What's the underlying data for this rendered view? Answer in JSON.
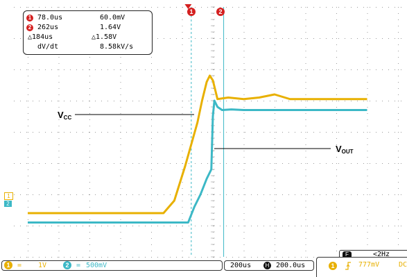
{
  "colors": {
    "ch1": "#e8b000",
    "ch2": "#3cb8c6",
    "cursor": "#d42020",
    "grid": "#9a9a9a",
    "text": "#000000"
  },
  "cursors": {
    "c1_badge": "1",
    "c2_badge": "2"
  },
  "readout": {
    "cursor1": {
      "badge": "1",
      "time": "78.0us",
      "volt": "60.0mV"
    },
    "cursor2": {
      "badge": "2",
      "time": "262us",
      "volt": "1.64V"
    },
    "delta": {
      "time_symbol": "△",
      "time": "184us",
      "volt_symbol": "△",
      "volt": "1.58V"
    },
    "slope": {
      "label": "dV/dt",
      "value": "8.58kV/s"
    }
  },
  "channels": {
    "ch1": {
      "marker": "1",
      "coupling_icon": "=",
      "scale": "1V"
    },
    "ch2": {
      "marker": "2",
      "coupling_icon": "=",
      "scale": "500mV"
    }
  },
  "labels": {
    "vcc": {
      "main": "V",
      "sub": "CC"
    },
    "vout": {
      "main": "V",
      "sub": "OUT"
    }
  },
  "timebase": {
    "scale": "200us",
    "icon": "H",
    "position": "200.0us"
  },
  "trigger": {
    "channel": "1",
    "edge_icon": "rising-edge",
    "level": "777mV",
    "coupling": "DC",
    "mode_label": "F",
    "freq": "<2Hz"
  },
  "chart_data": {
    "type": "line",
    "title": "",
    "xlabel": "",
    "ylabel": "",
    "grid": true,
    "series": [
      {
        "name": "VCC",
        "color": "#e8b000",
        "x_div": [
          0.0,
          4.4,
          4.75,
          5.1,
          5.5,
          5.65,
          5.8,
          5.9,
          6.0,
          6.15,
          6.5,
          7.0,
          7.5,
          8.0,
          8.5,
          9.0,
          10.0,
          11.0
        ],
        "y_div": [
          -2.6,
          -2.6,
          -2.2,
          -1.1,
          0.3,
          1.0,
          1.6,
          1.8,
          1.65,
          1.05,
          1.1,
          1.05,
          1.1,
          1.2,
          1.05,
          1.05,
          1.05,
          1.05
        ]
      },
      {
        "name": "VOUT",
        "color": "#3cb8c6",
        "x_div": [
          0.0,
          5.2,
          5.4,
          5.6,
          5.8,
          5.95,
          6.0,
          6.05,
          6.15,
          6.3,
          6.6,
          7.0,
          8.0,
          9.0,
          10.0,
          11.0
        ],
        "y_div": [
          -2.9,
          -2.9,
          -2.4,
          -2.0,
          -1.5,
          -1.2,
          0.5,
          1.0,
          0.8,
          0.7,
          0.72,
          0.7,
          0.7,
          0.7,
          0.7,
          0.7
        ]
      }
    ],
    "cursors_x_div": [
      5.3,
      6.35
    ]
  }
}
